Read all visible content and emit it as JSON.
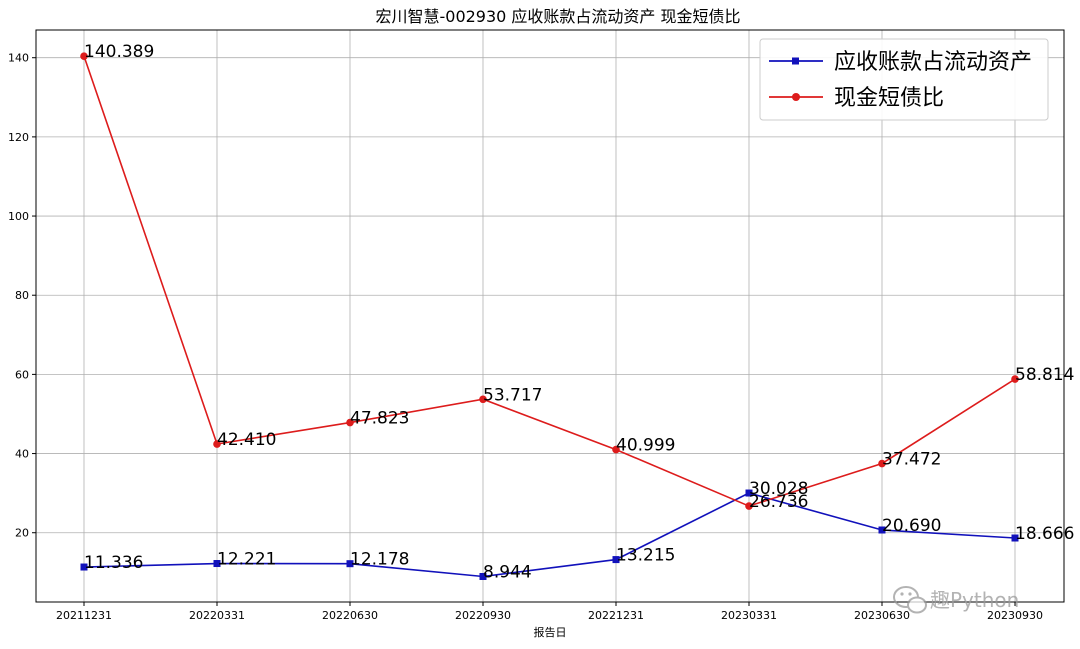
{
  "chart_data": {
    "type": "line",
    "title": "宏川智慧-002930 应收账款占流动资产 现金短债比",
    "xlabel": "报告日",
    "ylabel": "",
    "categories": [
      "20211231",
      "20220331",
      "20220630",
      "20220930",
      "20221231",
      "20230331",
      "20230630",
      "20230930"
    ],
    "ylim": [
      2.5,
      147
    ],
    "yticks": [
      20,
      40,
      60,
      80,
      100,
      120,
      140
    ],
    "ytick_labels": [
      "20",
      "40",
      "60",
      "80",
      "100",
      "120",
      "140"
    ],
    "grid": true,
    "legend_position": "top-right",
    "series": [
      {
        "name": "应收账款占流动资产",
        "color": "#1111bb",
        "marker": "square",
        "values": [
          11.336,
          12.221,
          12.178,
          8.944,
          13.215,
          30.028,
          20.69,
          18.666
        ],
        "labels": [
          "11.336",
          "12.221",
          "12.178",
          "8.944",
          "13.215",
          "30.028",
          "20.690",
          "18.666"
        ]
      },
      {
        "name": "现金短债比",
        "color": "#dd1c1c",
        "marker": "circle",
        "values": [
          140.389,
          42.41,
          47.823,
          53.717,
          40.999,
          26.736,
          37.472,
          58.814
        ],
        "labels": [
          "140.389",
          "42.410",
          "47.823",
          "53.717",
          "40.999",
          "26.736",
          "37.472",
          "58.814"
        ]
      }
    ]
  },
  "watermark": {
    "text": "趣Python",
    "icon": "wechat-icon"
  }
}
